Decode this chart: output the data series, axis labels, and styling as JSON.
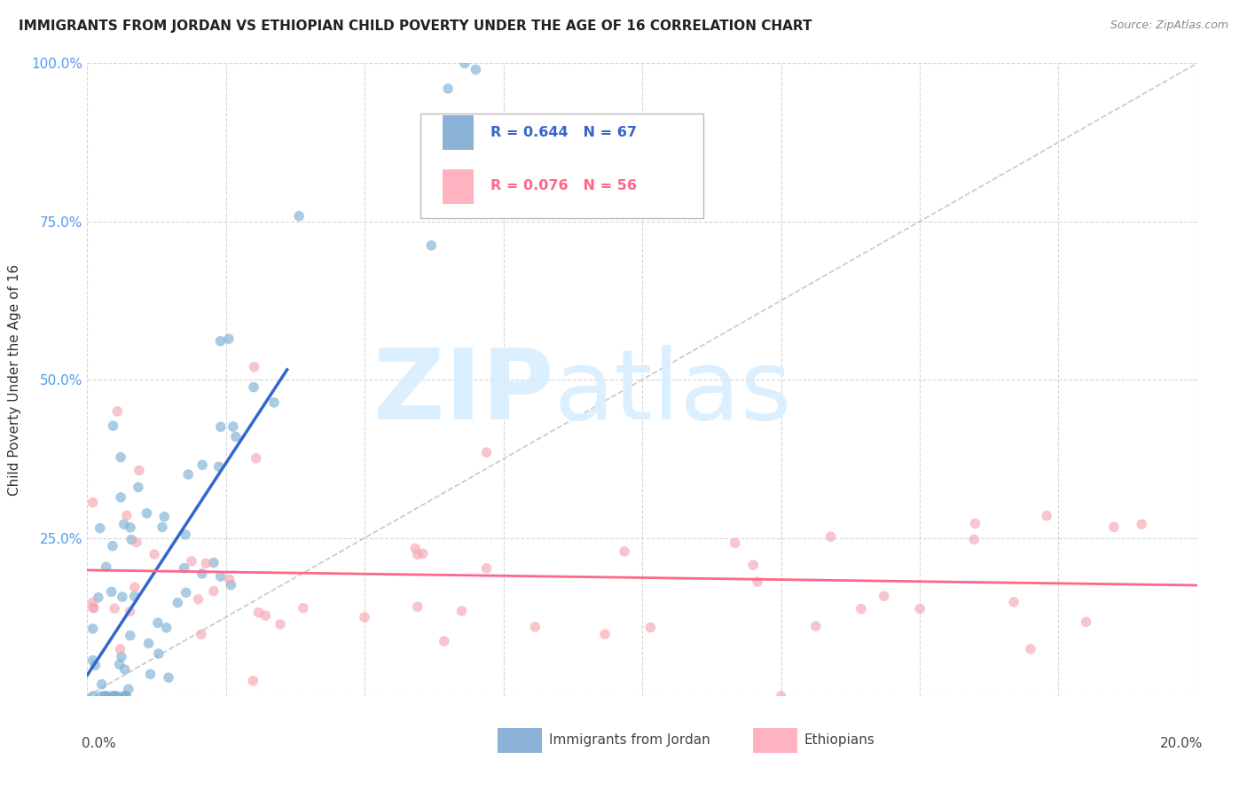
{
  "title": "IMMIGRANTS FROM JORDAN VS ETHIOPIAN CHILD POVERTY UNDER THE AGE OF 16 CORRELATION CHART",
  "source": "Source: ZipAtlas.com",
  "ylabel": "Child Poverty Under the Age of 16",
  "legend_label1": "Immigrants from Jordan",
  "legend_label2": "Ethiopians",
  "blue_color": "#7BAFD4",
  "pink_color": "#F4A7B0",
  "blue_line_color": "#3366CC",
  "pink_line_color": "#FF6688",
  "blue_legend_color": "#6699CC",
  "pink_legend_color": "#FF99AA",
  "watermark_color": "#D8EEFF",
  "background_color": "#FFFFFF",
  "jordan_R": 0.644,
  "jordan_N": 67,
  "ethiopian_R": 0.076,
  "ethiopian_N": 56,
  "xlim": [
    0.0,
    0.2
  ],
  "ylim": [
    0.0,
    1.0
  ],
  "yticks": [
    0.0,
    0.25,
    0.5,
    0.75,
    1.0
  ],
  "ytick_labels": [
    "",
    "25.0%",
    "50.0%",
    "75.0%",
    "100.0%"
  ],
  "title_fontsize": 11,
  "source_fontsize": 9,
  "tick_fontsize": 11,
  "ylabel_fontsize": 11
}
